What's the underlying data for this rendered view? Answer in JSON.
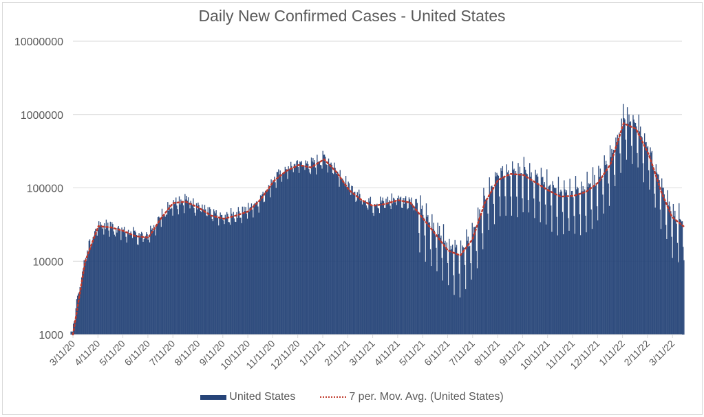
{
  "chart_data": {
    "type": "bar",
    "title": "Daily New Confirmed Cases - United States",
    "xlabel": "",
    "ylabel": "",
    "yscale": "log",
    "ylim": [
      1000,
      10000000
    ],
    "yticks": [
      "1000",
      "10000",
      "100000",
      "1000000",
      "10000000"
    ],
    "grid": true,
    "legend_position": "bottom",
    "xticks": [
      "3/11/20",
      "4/11/20",
      "5/11/20",
      "6/11/20",
      "7/11/20",
      "8/11/20",
      "9/11/20",
      "10/11/20",
      "11/11/20",
      "12/11/20",
      "1/11/21",
      "2/11/21",
      "3/11/21",
      "4/11/21",
      "5/11/21",
      "6/11/21",
      "7/11/21",
      "8/11/21",
      "9/11/21",
      "10/11/21",
      "11/11/21",
      "12/11/21",
      "1/11/22",
      "2/11/22",
      "3/11/22"
    ],
    "series": [
      {
        "name": "United States",
        "kind": "bar",
        "color": "#264478",
        "note": "daily values approximated as semi-monthly levels of the moving average with weekday dips",
        "dates": [
          "3/11/20",
          "3/26/20",
          "4/11/20",
          "4/26/20",
          "5/11/20",
          "5/26/20",
          "6/11/20",
          "6/26/20",
          "7/11/20",
          "7/26/20",
          "8/11/20",
          "8/26/20",
          "9/11/20",
          "9/26/20",
          "10/11/20",
          "10/26/20",
          "11/11/20",
          "11/26/20",
          "12/11/20",
          "12/26/20",
          "1/11/21",
          "1/26/21",
          "2/11/21",
          "2/26/21",
          "3/11/21",
          "3/26/21",
          "4/11/21",
          "4/26/21",
          "5/11/21",
          "5/26/21",
          "6/11/21",
          "6/26/21",
          "7/11/21",
          "7/26/21",
          "8/11/21",
          "8/26/21",
          "9/11/21",
          "9/26/21",
          "10/11/21",
          "10/26/21",
          "11/11/21",
          "11/26/21",
          "12/11/21",
          "12/26/21",
          "1/11/22",
          "1/26/22",
          "2/11/22",
          "2/26/22",
          "3/11/22",
          "3/25/22"
        ],
        "values": [
          1500,
          12000,
          31000,
          29000,
          25000,
          22000,
          22000,
          40000,
          62000,
          67000,
          55000,
          42000,
          37000,
          43000,
          50000,
          72000,
          130000,
          175000,
          210000,
          200000,
          250000,
          170000,
          95000,
          70000,
          58000,
          62000,
          70000,
          65000,
          40000,
          25000,
          15000,
          12000,
          20000,
          65000,
          130000,
          155000,
          150000,
          120000,
          95000,
          78000,
          80000,
          90000,
          120000,
          220000,
          780000,
          650000,
          280000,
          90000,
          40000,
          30000
        ],
        "peak": {
          "date": "1/10/22",
          "value": 1400000
        }
      },
      {
        "name": "7 per. Mov. Avg. (United States)",
        "kind": "line",
        "style": "dotted",
        "color": "#c0392b",
        "dates": [
          "3/11/20",
          "3/26/20",
          "4/11/20",
          "4/26/20",
          "5/11/20",
          "5/26/20",
          "6/11/20",
          "6/26/20",
          "7/11/20",
          "7/26/20",
          "8/11/20",
          "8/26/20",
          "9/11/20",
          "9/26/20",
          "10/11/20",
          "10/26/20",
          "11/11/20",
          "11/26/20",
          "12/11/20",
          "12/26/20",
          "1/11/21",
          "1/26/21",
          "2/11/21",
          "2/26/21",
          "3/11/21",
          "3/26/21",
          "4/11/21",
          "4/26/21",
          "5/11/21",
          "5/26/21",
          "6/11/21",
          "6/26/21",
          "7/11/21",
          "7/26/21",
          "8/11/21",
          "8/26/21",
          "9/11/21",
          "9/26/21",
          "10/11/21",
          "10/26/21",
          "11/11/21",
          "11/26/21",
          "12/11/21",
          "12/26/21",
          "1/11/22",
          "1/26/22",
          "2/11/22",
          "2/26/22",
          "3/11/22",
          "3/25/22"
        ],
        "values": [
          1000,
          10000,
          30000,
          29000,
          26000,
          22000,
          21000,
          38000,
          62000,
          65000,
          54000,
          42000,
          38000,
          42000,
          48000,
          70000,
          125000,
          170000,
          205000,
          190000,
          245000,
          165000,
          92000,
          68000,
          57000,
          60000,
          68000,
          63000,
          39000,
          24000,
          14000,
          12000,
          20000,
          63000,
          128000,
          155000,
          150000,
          118000,
          93000,
          76000,
          78000,
          88000,
          118000,
          210000,
          760000,
          640000,
          280000,
          88000,
          40000,
          30000
        ]
      }
    ]
  },
  "legend": {
    "items": [
      {
        "label": "United States"
      },
      {
        "label": "7 per. Mov. Avg. (United States)"
      }
    ]
  }
}
